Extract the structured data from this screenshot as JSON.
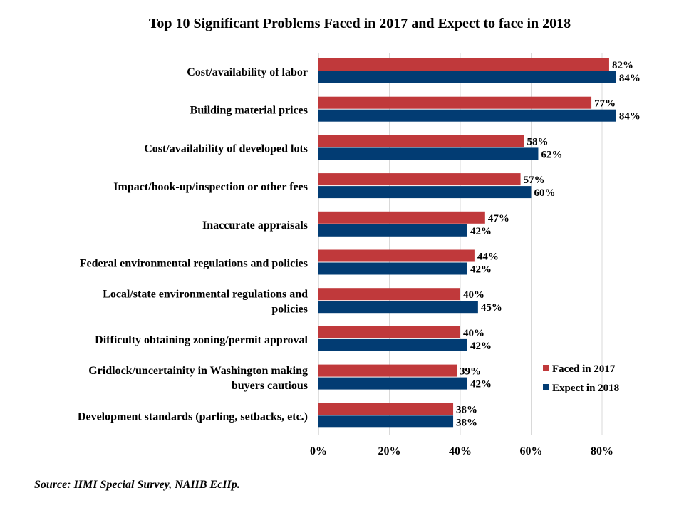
{
  "chart_data": {
    "type": "bar",
    "orientation": "horizontal",
    "title": "Top 10 Significant Problems Faced in 2017 and Expect to face in 2018",
    "categories": [
      [
        "Cost/availability of labor"
      ],
      [
        "Building material prices"
      ],
      [
        "Cost/availability of developed lots"
      ],
      [
        "Impact/hook-up/inspection or other fees"
      ],
      [
        "Inaccurate appraisals"
      ],
      [
        "Federal environmental regulations and policies"
      ],
      [
        "Local/state environmental regulations and",
        "policies"
      ],
      [
        "Difficulty obtaining zoning/permit approval"
      ],
      [
        "Gridlock/uncertainity in Washington making",
        "buyers cautious"
      ],
      [
        "Development standards (parling, setbacks, etc.)"
      ]
    ],
    "series": [
      {
        "name": "Faced in 2017",
        "color": "#C0393B",
        "values": [
          82,
          77,
          58,
          57,
          47,
          44,
          40,
          40,
          39,
          38
        ]
      },
      {
        "name": "Expect in 2018",
        "color": "#023C73",
        "values": [
          84,
          84,
          62,
          60,
          42,
          42,
          45,
          42,
          42,
          38
        ]
      }
    ],
    "xlim": [
      0,
      80
    ],
    "xticks": [
      "0%",
      "20%",
      "40%",
      "60%",
      "80%"
    ],
    "xtick_values": [
      0,
      20,
      40,
      60,
      80
    ],
    "value_suffix": "%",
    "grid": "vertical",
    "legend": "right"
  },
  "source": "Source: HMI Special Survey, NAHB EcHp."
}
